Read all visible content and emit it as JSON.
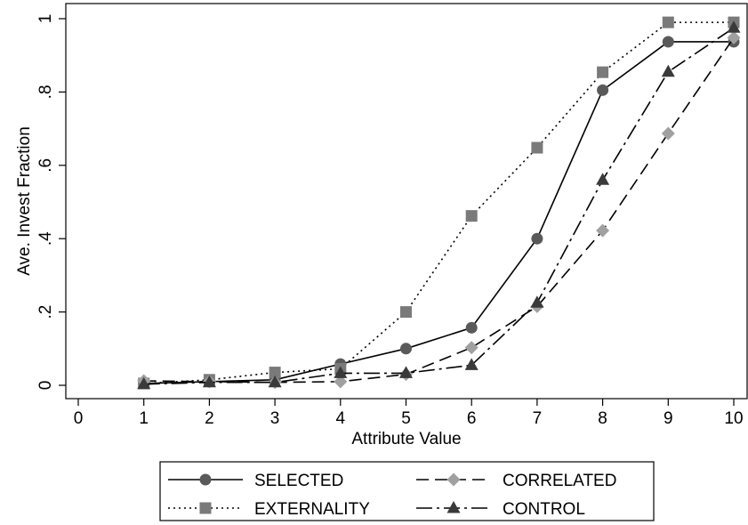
{
  "chart_data": {
    "type": "line",
    "xlabel": "Attribute Value",
    "ylabel": "Ave. Invest Fraction",
    "xlim": [
      0,
      10
    ],
    "ylim": [
      0,
      1
    ],
    "x_ticks": [
      0,
      1,
      2,
      3,
      4,
      5,
      6,
      7,
      8,
      9,
      10
    ],
    "x_tick_labels": [
      "0",
      "1",
      "2",
      "3",
      "4",
      "5",
      "6",
      "7",
      "8",
      "9",
      "10"
    ],
    "y_ticks": [
      0,
      0.2,
      0.4,
      0.6,
      0.8,
      1
    ],
    "y_tick_labels": [
      "0",
      ".2",
      ".4",
      ".6",
      ".8",
      "1"
    ],
    "grid": false,
    "legend_position": "bottom",
    "x": [
      1,
      2,
      3,
      4,
      5,
      6,
      7,
      8,
      9,
      10
    ],
    "series": [
      {
        "name": "SELECTED",
        "values": [
          0.005,
          0.01,
          0.015,
          0.058,
          0.1,
          0.157,
          0.4,
          0.805,
          0.937,
          0.937
        ],
        "color": "#5a5a5a",
        "line_color": "#000000",
        "marker": "circle",
        "dash": "solid"
      },
      {
        "name": "EXTERNALITY",
        "values": [
          0.005,
          0.015,
          0.035,
          0.045,
          0.2,
          0.462,
          0.648,
          0.854,
          0.99,
          0.99
        ],
        "color": "#7a7a7a",
        "line_color": "#000000",
        "marker": "square",
        "dash": "dotted"
      },
      {
        "name": "CORRELATED",
        "values": [
          0.012,
          0.01,
          0.008,
          0.01,
          0.03,
          0.103,
          0.215,
          0.422,
          0.687,
          0.948
        ],
        "color": "#a0a0a0",
        "line_color": "#000000",
        "marker": "diamond",
        "dash": "dashed"
      },
      {
        "name": "CONTROL",
        "values": [
          0.003,
          0.008,
          0.008,
          0.033,
          0.033,
          0.055,
          0.225,
          0.56,
          0.855,
          0.975
        ],
        "color": "#3a3a3a",
        "line_color": "#000000",
        "marker": "triangle",
        "dash": "dashdot"
      }
    ],
    "legend_order": [
      "SELECTED",
      "CORRELATED",
      "EXTERNALITY",
      "CONTROL"
    ]
  }
}
